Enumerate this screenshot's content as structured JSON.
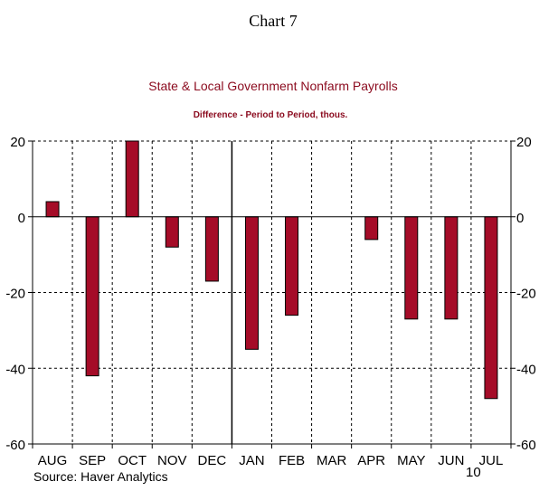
{
  "header": "Chart 7",
  "source": "Source: Haver Analytics",
  "year_label": "10",
  "colors": {
    "bar": "#a50c28",
    "bar_outline": "#000000",
    "title": "#8b0a1e"
  },
  "chart_data": {
    "type": "bar",
    "title": "State & Local Government Nonfarm Payrolls",
    "subtitle": "Difference - Period to Period, thous.",
    "categories": [
      "AUG",
      "SEP",
      "OCT",
      "NOV",
      "DEC",
      "JAN",
      "FEB",
      "MAR",
      "APR",
      "MAY",
      "JUN",
      "JUL"
    ],
    "values": [
      4,
      -42,
      20,
      -8,
      -17,
      -35,
      -26,
      0,
      -6,
      -27,
      -27,
      -48
    ],
    "ylim": [
      -60,
      20
    ],
    "yticks": [
      20,
      0,
      -20,
      -40,
      -60
    ],
    "ytick_labels": [
      "20",
      "0",
      "-20",
      "-40",
      "-60"
    ],
    "xlabel": "",
    "ylabel": "",
    "grid": true,
    "year_boundary_after": "DEC"
  }
}
